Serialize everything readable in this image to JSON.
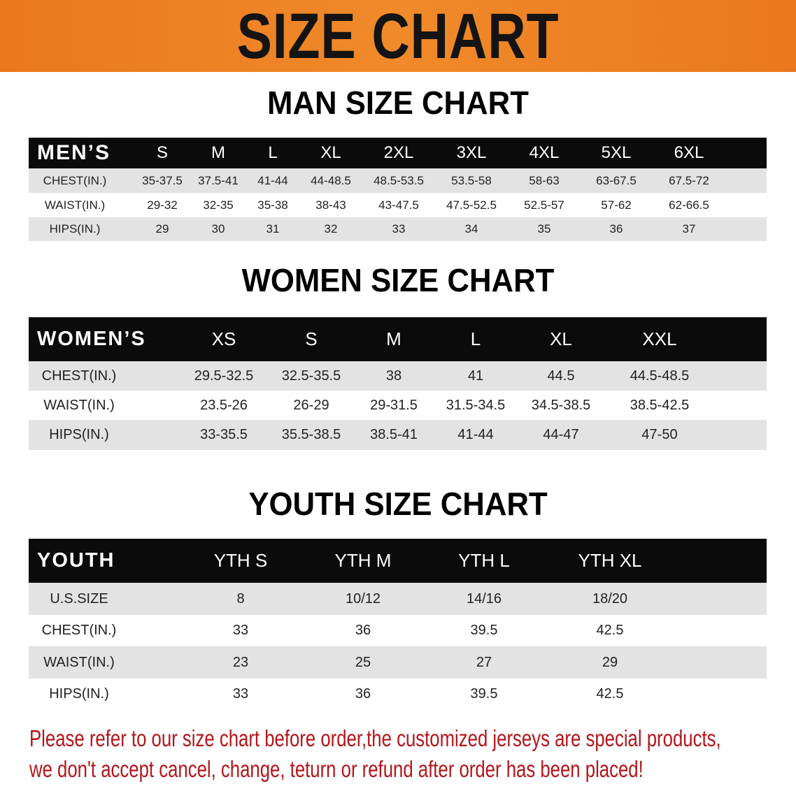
{
  "banner": {
    "title": "SIZE CHART",
    "color": "#ec7f22"
  },
  "men": {
    "title": "MAN SIZE CHART",
    "header": [
      "MEN’S",
      "S",
      "M",
      "L",
      "XL",
      "2XL",
      "3XL",
      "4XL",
      "5XL",
      "6XL"
    ],
    "rows": [
      [
        "CHEST(IN.)",
        "35-37.5",
        "37.5-41",
        "41-44",
        "44-48.5",
        "48.5-53.5",
        "53.5-58",
        "58-63",
        "63-67.5",
        "67.5-72"
      ],
      [
        "WAIST(IN.)",
        "29-32",
        "32-35",
        "35-38",
        "38-43",
        "43-47.5",
        "47.5-52.5",
        "52.5-57",
        "57-62",
        "62-66.5"
      ],
      [
        "HIPS(IN.)",
        "29",
        "30",
        "31",
        "32",
        "33",
        "34",
        "35",
        "36",
        "37"
      ]
    ]
  },
  "women": {
    "title": "WOMEN SIZE CHART",
    "header": [
      "WOMEN’S",
      "XS",
      "S",
      "M",
      "L",
      "XL",
      "XXL"
    ],
    "rows": [
      [
        "CHEST(IN.)",
        "29.5-32.5",
        "32.5-35.5",
        "38",
        "41",
        "44.5",
        "44.5-48.5"
      ],
      [
        "WAIST(IN.)",
        "23.5-26",
        "26-29",
        "29-31.5",
        "31.5-34.5",
        "34.5-38.5",
        "38.5-42.5"
      ],
      [
        "HIPS(IN.)",
        "33-35.5",
        "35.5-38.5",
        "38.5-41",
        "41-44",
        "44-47",
        "47-50"
      ]
    ]
  },
  "youth": {
    "title": "YOUTH SIZE CHART",
    "header": [
      "YOUTH",
      "YTH S",
      "YTH M",
      "YTH L",
      "YTH XL"
    ],
    "rows": [
      [
        "U.S.SIZE",
        "8",
        "10/12",
        "14/16",
        "18/20"
      ],
      [
        "CHEST(IN.)",
        "33",
        "36",
        "39.5",
        "42.5"
      ],
      [
        "WAIST(IN.)",
        "23",
        "25",
        "27",
        "29"
      ],
      [
        "HIPS(IN.)",
        "33",
        "36",
        "39.5",
        "42.5"
      ]
    ]
  },
  "note": {
    "line1": "Please refer to our size chart before order,the customized jerseys are special products,",
    "line2": "we don't accept cancel, change, teturn or refund after order has been placed!",
    "color": "#b3161b"
  }
}
